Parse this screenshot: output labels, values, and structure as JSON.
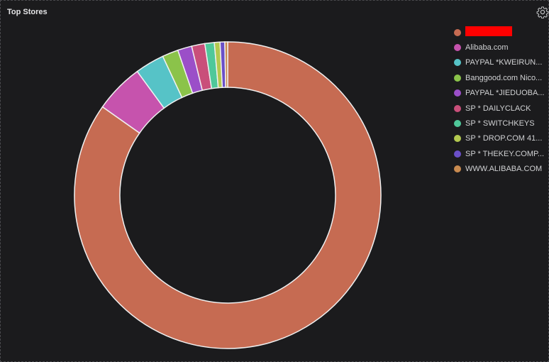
{
  "panel": {
    "title": "Top Stores",
    "settings_icon": "gear-icon"
  },
  "chart_data": {
    "type": "pie",
    "donut": true,
    "title": "Top Stores",
    "legend_position": "right",
    "slices": [
      {
        "label": "",
        "redacted": true,
        "value": 85.2,
        "color": "#c66b52"
      },
      {
        "label": "Alibaba.com",
        "value": 5.2,
        "color": "#c653ad"
      },
      {
        "label": "PAYPAL *KWEIRUN...",
        "value": 3.1,
        "color": "#56c3c7"
      },
      {
        "label": "Banggood.com Nico...",
        "value": 1.7,
        "color": "#8bc34a"
      },
      {
        "label": "PAYPAL *JIEDUOBA...",
        "value": 1.5,
        "color": "#9b4fc8"
      },
      {
        "label": "SP * DAILYCLACK",
        "value": 1.4,
        "color": "#c94f7a"
      },
      {
        "label": "SP * SWITCHKEYS",
        "value": 1.0,
        "color": "#4fc89a"
      },
      {
        "label": "SP * DROP.COM 41...",
        "value": 0.6,
        "color": "#b3c94f"
      },
      {
        "label": "SP * THEKEY.COMP...",
        "value": 0.5,
        "color": "#6a4fc8"
      },
      {
        "label": "WWW.ALIBABA.COM",
        "value": 0.3,
        "color": "#c88a4f"
      }
    ]
  }
}
